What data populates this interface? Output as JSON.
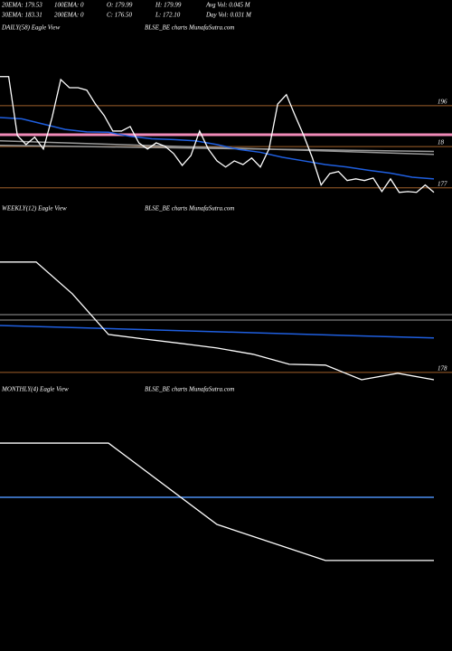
{
  "header": {
    "rows": [
      [
        "20EMA: 179.53",
        "100EMA: 0",
        "O: 179.99",
        "H: 179.99",
        "Avg Vol: 0.045 M"
      ],
      [
        "30EMA: 183.31",
        "200EMA: 0",
        "C: 176.50",
        "L: 172.10",
        "Day Vol: 0.031 M"
      ]
    ]
  },
  "chart_data": [
    {
      "type": "line",
      "title": "DAILY(58) Eagle  View",
      "subtitle": "BLSE_BE charts MunafaSutra.com",
      "ylim": [
        173.2,
        213
      ],
      "hlines": [
        {
          "value": 196,
          "color": "#a0602a"
        },
        {
          "value": 186,
          "color": "#a0602a"
        },
        {
          "value": 175.9,
          "color": "#a0602a"
        },
        {
          "value": 188.9,
          "color": "#f08ab8"
        }
      ],
      "price_labels": [
        "196",
        "18",
        "177"
      ],
      "series": [
        {
          "color": "#9a9a9a",
          "values": [
            187.4,
            184.1
          ]
        },
        {
          "color": "#9a9a9a",
          "values": [
            186.3,
            184.8
          ]
        },
        {
          "color": "#1f5fe0",
          "values": [
            193.1,
            192.8,
            191.5,
            190.2,
            189.6,
            189.5,
            188.5,
            187.9,
            187.7,
            187.4,
            186.5,
            185.3,
            184.6,
            183.4,
            182.5,
            181.6,
            181.0,
            180.2,
            179.5,
            178.5,
            178.1
          ]
        },
        {
          "color": "#ffffff",
          "values": [
            203.1,
            203.1,
            188.7,
            186.5,
            188.3,
            185.4,
            193.1,
            202.4,
            200.4,
            200.4,
            199.8,
            196.4,
            193.6,
            189.8,
            189.8,
            190.9,
            186.9,
            185.4,
            186.9,
            186.1,
            184.3,
            181.4,
            183.8,
            189.8,
            185.4,
            182.5,
            181.0,
            182.5,
            181.6,
            183.2,
            181.0,
            185.4,
            196.4,
            198.7,
            193.6,
            188.7,
            183.2,
            176.6,
            179.4,
            179.9,
            177.7,
            178.1,
            177.7,
            178.3,
            175.0,
            178.1,
            174.8,
            175.0,
            174.8,
            176.6,
            174.8
          ]
        }
      ]
    },
    {
      "type": "line",
      "title": "WEEKLY(12) Eagle  View",
      "subtitle": "BLSE_BE charts MunafaSutra.com",
      "ylim": [
        175.3,
        235.3
      ],
      "hlines": [
        {
          "value": 178,
          "color": "#a0602a"
        },
        {
          "value": 199.3,
          "color": "#9a9a9a"
        },
        {
          "value": 197.3,
          "color": "#9a9a9a"
        }
      ],
      "price_labels": [
        "178"
      ],
      "series": [
        {
          "color": "#1f5fe0",
          "values": [
            195.3,
            190.7
          ]
        },
        {
          "color": "#ffffff",
          "values": [
            218.7,
            218.7,
            207,
            192,
            190.3,
            188.7,
            187,
            184.7,
            181,
            180.7,
            175.3,
            177.7,
            175.3
          ]
        }
      ]
    },
    {
      "type": "line",
      "title": "MONTHLY(4) Eagle  View",
      "subtitle": "BLSE_BE charts MunafaSutra.com",
      "ylim": [
        153.3,
        246.7
      ],
      "hlines": [],
      "price_labels": [],
      "series": [
        {
          "color": "#4a8ef0",
          "values": [
            210,
            210
          ]
        },
        {
          "color": "#ffffff",
          "values": [
            230,
            230,
            200,
            186.7,
            186.7
          ]
        }
      ]
    }
  ]
}
